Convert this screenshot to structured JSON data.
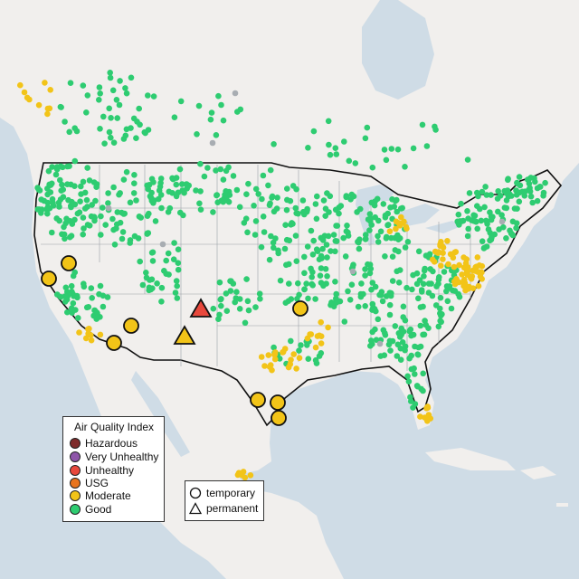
{
  "legend": {
    "title": "Air Quality Index",
    "categories": [
      {
        "label": "Hazardous",
        "color": "#7e2b2b"
      },
      {
        "label": "Very Unhealthy",
        "color": "#8e55a9"
      },
      {
        "label": "Unhealthy",
        "color": "#e8483c"
      },
      {
        "label": "USG",
        "color": "#e8741e"
      },
      {
        "label": "Moderate",
        "color": "#f2c418"
      },
      {
        "label": "Good",
        "color": "#2ecc71"
      }
    ],
    "monitor_types": [
      {
        "label": "temporary",
        "shape": "circle"
      },
      {
        "label": "permanent",
        "shape": "triangle"
      }
    ]
  },
  "colors": {
    "land": "#f1efed",
    "water": "#cfdce6",
    "good": "#2ecc71",
    "moderate": "#f2c418",
    "unhealthy": "#e8483c",
    "usg": "#e8741e",
    "no_data": "#a8adb2"
  }
}
